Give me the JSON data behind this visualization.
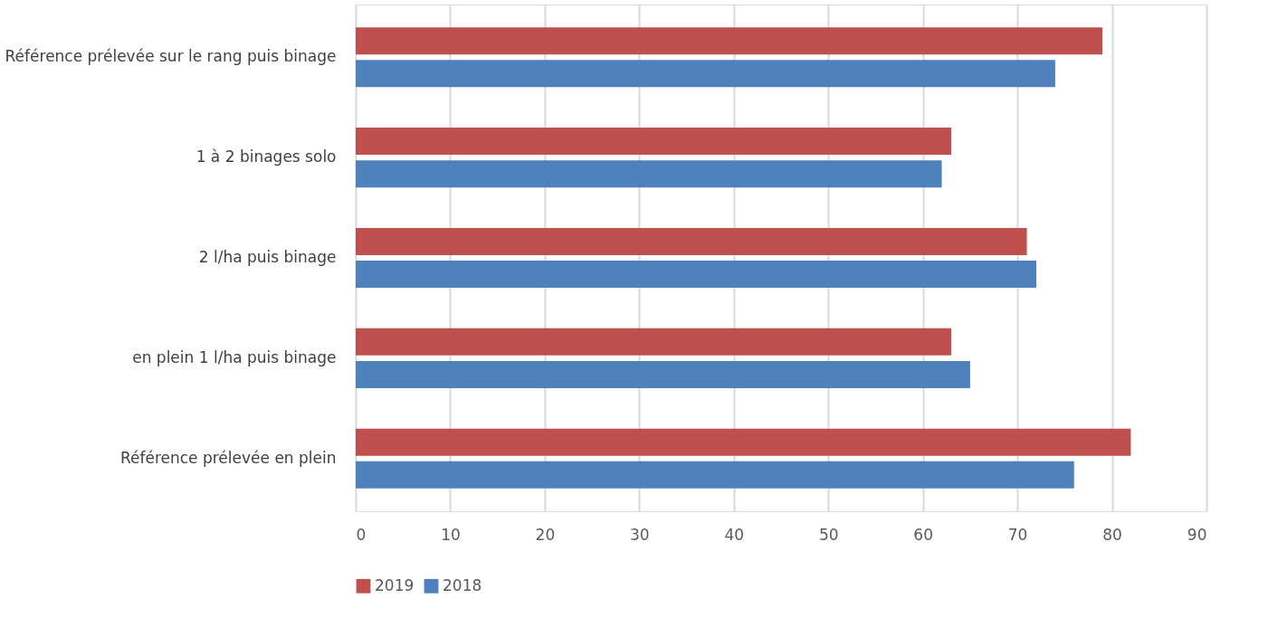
{
  "chart_data": {
    "type": "bar",
    "orientation": "horizontal",
    "categories": [
      "Référence prélevée sur le rang puis binage",
      "1 à 2 binages solo",
      "2 l/ha puis binage",
      "en plein 1 l/ha puis binage",
      "Référence prélevée en plein"
    ],
    "series": [
      {
        "name": "2019",
        "color": "#c0504d",
        "values": [
          79,
          63,
          71,
          63,
          82
        ]
      },
      {
        "name": "2018",
        "color": "#4f81bd",
        "values": [
          74,
          62,
          72,
          65,
          76
        ]
      }
    ],
    "xlim": [
      0,
      90
    ],
    "xticks": [
      0,
      10,
      20,
      30,
      40,
      50,
      60,
      70,
      80,
      90
    ],
    "grid": "x",
    "legend": "bottom"
  }
}
